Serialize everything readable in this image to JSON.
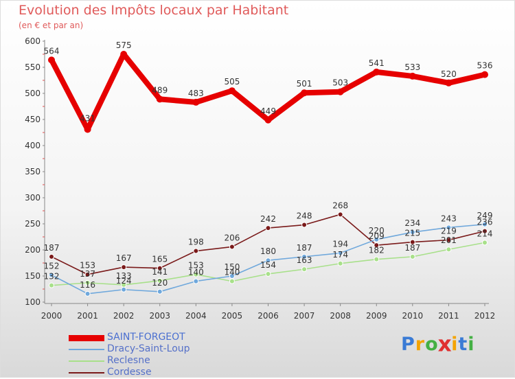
{
  "chart_data": {
    "type": "line",
    "title": "Evolution des Impôts locaux par Habitant",
    "subtitle": "(en € et par an)",
    "x": [
      "2000",
      "2001",
      "2002",
      "2003",
      "2004",
      "2005",
      "2006",
      "2007",
      "2008",
      "2009",
      "2010",
      "2011",
      "2012"
    ],
    "ylim": [
      100,
      600
    ],
    "yticks": [
      100,
      150,
      200,
      250,
      300,
      350,
      400,
      450,
      500,
      550,
      600
    ],
    "grid": false,
    "legend_position": "bottom-left",
    "series": [
      {
        "name": "SAINT-FORGEOT",
        "color": "#e60000",
        "values": [
          564,
          431,
          575,
          489,
          483,
          505,
          449,
          501,
          503,
          541,
          533,
          520,
          536
        ]
      },
      {
        "name": "Dracy-Saint-Loup",
        "color": "#6fa8dc",
        "values": [
          152,
          116,
          124,
          120,
          140,
          150,
          180,
          187,
          194,
          220,
          234,
          243,
          249
        ]
      },
      {
        "name": "Reclesne",
        "color": "#a8e08a",
        "values": [
          132,
          137,
          133,
          141,
          153,
          140,
          154,
          163,
          174,
          182,
          187,
          201,
          214
        ]
      },
      {
        "name": "Cordesse",
        "color": "#7a1a1a",
        "values": [
          187,
          153,
          167,
          165,
          198,
          206,
          242,
          248,
          268,
          209,
          215,
          219,
          236
        ]
      }
    ]
  },
  "brand": {
    "letters": [
      "P",
      "r",
      "o",
      "x",
      "i",
      "t",
      "i"
    ],
    "colors": [
      "#3a7bd5",
      "#f4a300",
      "#44b044",
      "#e03030",
      "#f4a300",
      "#3a7bd5",
      "#44b044"
    ]
  }
}
